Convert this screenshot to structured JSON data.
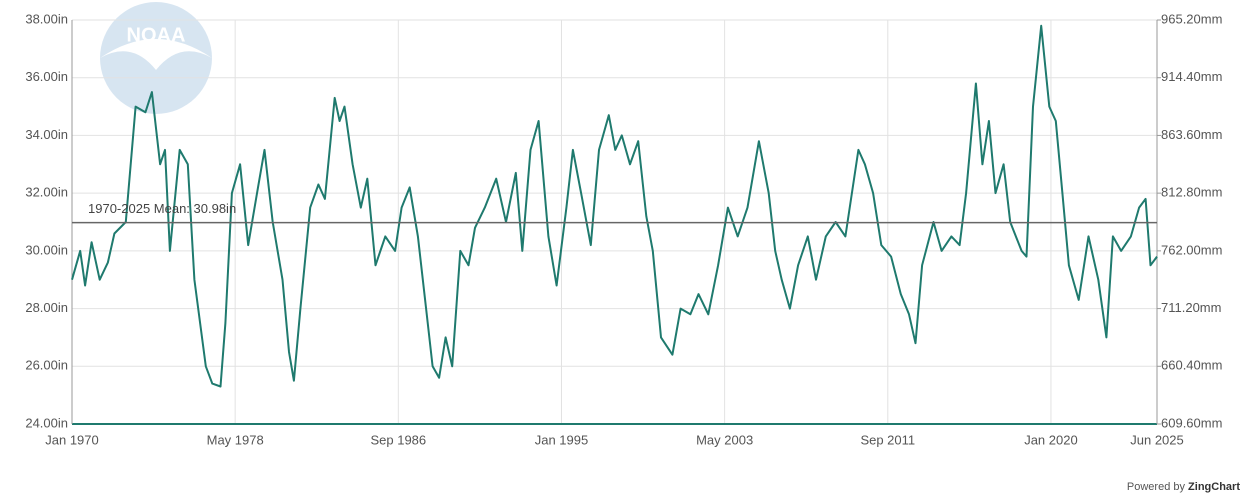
{
  "chart_data": {
    "type": "line",
    "x": [
      "1970-01",
      "1970-06",
      "1970-09",
      "1971-01",
      "1971-06",
      "1971-11",
      "1972-03",
      "1972-10",
      "1973-04",
      "1973-10",
      "1974-02",
      "1974-07",
      "1974-10",
      "1975-01",
      "1975-07",
      "1975-12",
      "1976-04",
      "1976-11",
      "1977-03",
      "1977-08",
      "1977-11",
      "1978-03",
      "1978-08",
      "1979-01",
      "1979-07",
      "1979-11",
      "1980-04",
      "1980-10",
      "1981-02",
      "1981-05",
      "1981-09",
      "1982-03",
      "1982-08",
      "1982-12",
      "1983-06",
      "1983-09",
      "1983-12",
      "1984-05",
      "1984-10",
      "1985-02",
      "1985-07",
      "1986-01",
      "1986-07",
      "1986-11",
      "1987-04",
      "1987-09",
      "1988-02",
      "1988-06",
      "1988-10",
      "1989-02",
      "1989-06",
      "1989-11",
      "1990-04",
      "1990-08",
      "1991-02",
      "1991-09",
      "1992-03",
      "1992-09",
      "1993-01",
      "1993-06",
      "1993-11",
      "1994-05",
      "1994-10",
      "1995-04",
      "1995-08",
      "1996-01",
      "1996-07",
      "1996-12",
      "1997-06",
      "1997-10",
      "1998-02",
      "1998-07",
      "1998-12",
      "1999-05",
      "1999-09",
      "2000-02",
      "2000-09",
      "2001-02",
      "2001-08",
      "2002-01",
      "2002-07",
      "2003-01",
      "2003-07",
      "2004-01",
      "2004-07",
      "2005-02",
      "2005-08",
      "2005-12",
      "2006-04",
      "2006-09",
      "2007-02",
      "2007-08",
      "2008-01",
      "2008-07",
      "2009-01",
      "2009-07",
      "2010-03",
      "2010-07",
      "2010-12",
      "2011-05",
      "2011-11",
      "2012-05",
      "2012-10",
      "2013-02",
      "2013-06",
      "2014-01",
      "2014-06",
      "2014-12",
      "2015-05",
      "2015-09",
      "2016-03",
      "2016-07",
      "2016-11",
      "2017-03",
      "2017-08",
      "2017-12",
      "2018-07",
      "2018-10",
      "2019-02",
      "2019-07",
      "2019-12",
      "2020-04",
      "2020-08",
      "2020-12",
      "2021-06",
      "2021-12",
      "2022-06",
      "2022-11",
      "2023-03",
      "2023-08",
      "2024-02",
      "2024-07",
      "2024-11",
      "2025-02",
      "2025-06"
    ],
    "series": [
      {
        "color": "#1f7a6e",
        "values": [
          29.0,
          30.0,
          28.8,
          30.3,
          29.0,
          29.6,
          30.6,
          31.0,
          35.0,
          34.8,
          35.5,
          33.0,
          33.5,
          30.0,
          33.5,
          33.0,
          29.0,
          26.0,
          25.4,
          25.3,
          27.5,
          32.0,
          33.0,
          30.2,
          32.2,
          33.5,
          31.0,
          29.0,
          26.5,
          25.5,
          28.0,
          31.5,
          32.3,
          31.8,
          35.3,
          34.5,
          35.0,
          33.0,
          31.5,
          32.5,
          29.5,
          30.5,
          30.0,
          31.5,
          32.2,
          30.5,
          28.0,
          26.0,
          25.6,
          27.0,
          26.0,
          30.0,
          29.5,
          30.8,
          31.5,
          32.5,
          31.0,
          32.7,
          30.0,
          33.5,
          34.5,
          30.5,
          28.8,
          31.5,
          33.5,
          32.0,
          30.2,
          33.5,
          34.7,
          33.5,
          34.0,
          33.0,
          33.8,
          31.2,
          30.0,
          27.0,
          26.4,
          28.0,
          27.8,
          28.5,
          27.8,
          29.5,
          31.5,
          30.5,
          31.5,
          33.8,
          32.0,
          30.0,
          29.0,
          28.0,
          29.5,
          30.5,
          29.0,
          30.5,
          31.0,
          30.5,
          33.5,
          33.0,
          32.0,
          30.2,
          29.8,
          28.5,
          27.8,
          26.8,
          29.5,
          31.0,
          30.0,
          30.5,
          30.2,
          32.0,
          35.8,
          33.0,
          34.5,
          32.0,
          33.0,
          31.0,
          30.0,
          29.8,
          35.0,
          37.8,
          35.0,
          34.5,
          32.0,
          29.5,
          28.3,
          30.5,
          29.0,
          27.0,
          30.5,
          30.0,
          30.5,
          31.5,
          31.8,
          29.5,
          29.8
        ]
      }
    ],
    "xlim": [
      "1970-01",
      "2025-06"
    ],
    "xticks": [
      {
        "value": "1970-01",
        "label": "Jan 1970"
      },
      {
        "value": "1978-05",
        "label": "May 1978"
      },
      {
        "value": "1986-09",
        "label": "Sep 1986"
      },
      {
        "value": "1995-01",
        "label": "Jan 1995"
      },
      {
        "value": "2003-05",
        "label": "May 2003"
      },
      {
        "value": "2011-09",
        "label": "Sep 2011"
      },
      {
        "value": "2020-01",
        "label": "Jan 2020"
      },
      {
        "value": "2025-06",
        "label": "Jun 2025"
      }
    ],
    "ylim": [
      24,
      38
    ],
    "yticks": [
      {
        "value": 24,
        "label": "24.00in"
      },
      {
        "value": 26,
        "label": "26.00in"
      },
      {
        "value": 28,
        "label": "28.00in"
      },
      {
        "value": 30,
        "label": "30.00in"
      },
      {
        "value": 32,
        "label": "32.00in"
      },
      {
        "value": 34,
        "label": "34.00in"
      },
      {
        "value": 36,
        "label": "36.00in"
      },
      {
        "value": 38,
        "label": "38.00in"
      }
    ],
    "y2lim": [
      609.6,
      965.2
    ],
    "y2ticks": [
      {
        "value": 609.6,
        "label": "609.60mm"
      },
      {
        "value": 660.4,
        "label": "660.40mm"
      },
      {
        "value": 711.2,
        "label": "711.20mm"
      },
      {
        "value": 762,
        "label": "762.00mm"
      },
      {
        "value": 812.8,
        "label": "812.80mm"
      },
      {
        "value": 863.6,
        "label": "863.60mm"
      },
      {
        "value": 914.4,
        "label": "914.40mm"
      },
      {
        "value": 965.2,
        "label": "965.20mm"
      }
    ],
    "mean": {
      "value": 30.98,
      "label": "1970-2025 Mean: 30.98in"
    },
    "grid": true,
    "logo": "NOAA",
    "footer": {
      "prefix": "Powered by",
      "brand": "ZingChart"
    }
  }
}
